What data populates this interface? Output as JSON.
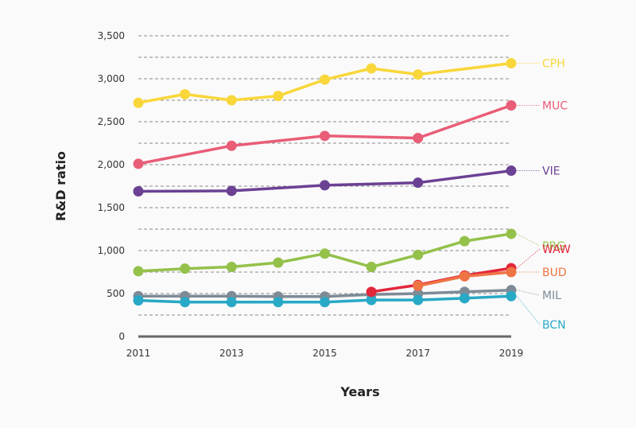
{
  "chart_data": {
    "type": "line",
    "title": "",
    "xlabel": "Years",
    "ylabel": "R&D ratio",
    "x": [
      2011,
      2012,
      2013,
      2014,
      2015,
      2016,
      2017,
      2018,
      2019
    ],
    "x_tick_labels": [
      "2011",
      "2013",
      "2015",
      "2017",
      "2019"
    ],
    "ylim": [
      0,
      3500
    ],
    "y_ticks": [
      0,
      500,
      1000,
      1500,
      2000,
      2500,
      3000,
      3500
    ],
    "y_tick_labels": [
      "0",
      "500",
      "1,000",
      "1,500",
      "2,000",
      "2,500",
      "3,000",
      "3,500"
    ],
    "grid": "horizontal dashed every 250",
    "legend": "direct labels at right end of each series",
    "series": [
      {
        "name": "CPH",
        "color": "#F9D73A",
        "x": [
          2011,
          2012,
          2013,
          2014,
          2015,
          2016,
          2017,
          2019
        ],
        "values": [
          2720,
          2820,
          2750,
          2800,
          2990,
          3120,
          3050,
          3180
        ]
      },
      {
        "name": "MUC",
        "color": "#E95D77",
        "x": [
          2011,
          2013,
          2015,
          2017,
          2019
        ],
        "values": [
          2010,
          2220,
          2335,
          2310,
          2690
        ]
      },
      {
        "name": "VIE",
        "color": "#6B4193",
        "x": [
          2011,
          2013,
          2015,
          2017,
          2019
        ],
        "values": [
          1690,
          1695,
          1760,
          1790,
          1930
        ]
      },
      {
        "name": "PRG",
        "color": "#93C14A",
        "x": [
          2011,
          2012,
          2013,
          2014,
          2015,
          2016,
          2017,
          2018,
          2019
        ],
        "values": [
          760,
          790,
          810,
          860,
          965,
          810,
          950,
          1110,
          1195
        ]
      },
      {
        "name": "WAW",
        "color": "#E3263A",
        "x": [
          2016,
          2017,
          2018,
          2019
        ],
        "values": [
          520,
          600,
          710,
          795
        ]
      },
      {
        "name": "BUD",
        "color": "#EE7444",
        "x": [
          2017,
          2018,
          2019
        ],
        "values": [
          590,
          700,
          750
        ]
      },
      {
        "name": "MIL",
        "color": "#7E8B96",
        "x": [
          2011,
          2012,
          2013,
          2014,
          2015,
          2016,
          2017,
          2018,
          2019
        ],
        "values": [
          470,
          470,
          470,
          465,
          465,
          490,
          500,
          520,
          540
        ]
      },
      {
        "name": "BCN",
        "color": "#28A9C6",
        "x": [
          2011,
          2012,
          2013,
          2014,
          2015,
          2016,
          2017,
          2018,
          2019
        ],
        "values": [
          420,
          400,
          400,
          400,
          400,
          425,
          425,
          445,
          470
        ]
      }
    ],
    "label_offsets": {
      "CPH": 0,
      "MUC": 0,
      "VIE": 0,
      "PRG": -140,
      "WAW": 225,
      "BUD": 0,
      "MIL": -60,
      "BCN": -330
    }
  }
}
